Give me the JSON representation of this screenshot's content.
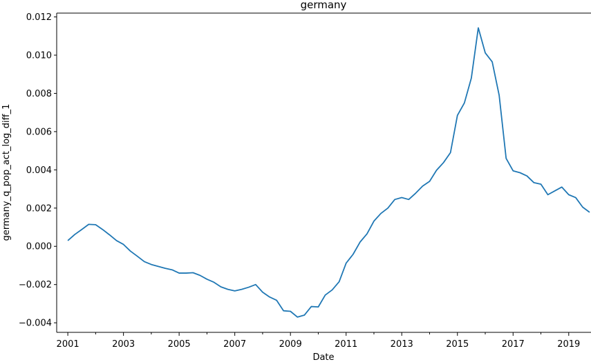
{
  "chart_data": {
    "type": "line",
    "title": "germany",
    "xlabel": "Date",
    "ylabel": "germany_q_pop_act_log_diff_1",
    "xlim": [
      2000.6,
      2019.8
    ],
    "ylim": [
      -0.0045,
      0.0122
    ],
    "x_major_ticks": [
      2001,
      2003,
      2005,
      2007,
      2009,
      2011,
      2013,
      2015,
      2017,
      2019
    ],
    "x_tick_labels": [
      "2001",
      "2003",
      "2005",
      "2007",
      "2009",
      "2011",
      "2013",
      "2015",
      "2017",
      "2019"
    ],
    "x_minor_ticks": [
      2002,
      2004,
      2006,
      2008,
      2010,
      2012,
      2014,
      2016,
      2018
    ],
    "y_ticks": [
      -0.004,
      -0.002,
      0.0,
      0.002,
      0.004,
      0.006,
      0.008,
      0.01,
      0.012
    ],
    "y_tick_labels": [
      "−0.004",
      "−0.002",
      "0.000",
      "0.002",
      "0.004",
      "0.006",
      "0.008",
      "0.010",
      "0.012"
    ],
    "grid": false,
    "line_color": "#1f77b4",
    "series": [
      {
        "x": [
          2001.0,
          2001.25,
          2001.5,
          2001.75,
          2002.0,
          2002.25,
          2002.5,
          2002.75,
          2003.0,
          2003.25,
          2003.5,
          2003.75,
          2004.0,
          2004.25,
          2004.5,
          2004.75,
          2005.0,
          2005.25,
          2005.5,
          2005.75,
          2006.0,
          2006.25,
          2006.5,
          2006.75,
          2007.0,
          2007.25,
          2007.5,
          2007.75,
          2008.0,
          2008.25,
          2008.5,
          2008.75,
          2009.0,
          2009.25,
          2009.5,
          2009.75,
          2010.0,
          2010.25,
          2010.5,
          2010.75,
          2011.0,
          2011.25,
          2011.5,
          2011.75,
          2012.0,
          2012.25,
          2012.5,
          2012.75,
          2013.0,
          2013.25,
          2013.5,
          2013.75,
          2014.0,
          2014.25,
          2014.5,
          2014.75,
          2015.0,
          2015.25,
          2015.5,
          2015.75,
          2016.0,
          2016.25,
          2016.5,
          2016.75,
          2017.0,
          2017.25,
          2017.5,
          2017.75,
          2018.0,
          2018.25,
          2018.5,
          2018.75,
          2019.0,
          2019.25,
          2019.5,
          2019.75
        ],
        "y": [
          0.0003,
          0.00062,
          0.00088,
          0.00115,
          0.00113,
          0.00088,
          0.0006,
          0.0003,
          0.0001,
          -0.00025,
          -0.00052,
          -0.0008,
          -0.00095,
          -0.00105,
          -0.00115,
          -0.00123,
          -0.0014,
          -0.0014,
          -0.00138,
          -0.00152,
          -0.00172,
          -0.00188,
          -0.00212,
          -0.00225,
          -0.00233,
          -0.00225,
          -0.00214,
          -0.002,
          -0.0024,
          -0.00265,
          -0.00282,
          -0.00337,
          -0.0034,
          -0.0037,
          -0.0036,
          -0.00315,
          -0.00317,
          -0.00255,
          -0.00228,
          -0.00185,
          -0.00088,
          -0.00042,
          0.00022,
          0.00065,
          0.00132,
          0.00172,
          0.002,
          0.00245,
          0.00255,
          0.00245,
          0.00278,
          0.00315,
          0.0034,
          0.00398,
          0.00438,
          0.0049,
          0.00685,
          0.0075,
          0.0088,
          0.01143,
          0.01012,
          0.00965,
          0.0079,
          0.0046,
          0.00395,
          0.00385,
          0.00368,
          0.00333,
          0.00325,
          0.0027,
          0.0029,
          0.0031,
          0.0027,
          0.00255,
          0.00205,
          0.00178
        ]
      }
    ]
  }
}
